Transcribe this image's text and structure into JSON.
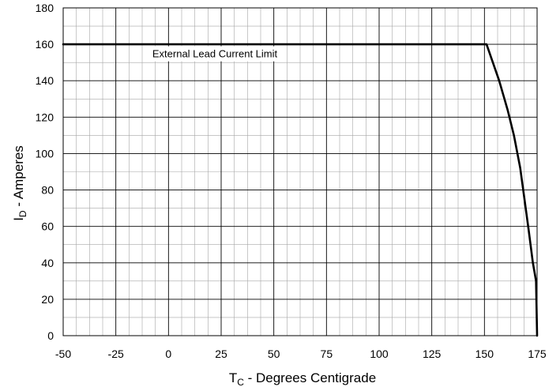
{
  "chart_data": {
    "type": "line",
    "xlabel": {
      "main": "T",
      "sub": "C",
      "rest": " - Degrees Centigrade"
    },
    "ylabel": {
      "main": "I",
      "sub": "D",
      "rest": " - Amperes"
    },
    "xlim": [
      -50,
      175
    ],
    "ylim": [
      0,
      180
    ],
    "xticks": [
      -50,
      -25,
      0,
      25,
      50,
      75,
      100,
      125,
      150,
      175
    ],
    "yticks": [
      0,
      20,
      40,
      60,
      80,
      100,
      120,
      140,
      160,
      180
    ],
    "x_minor_step": 6.25,
    "y_minor_step": 10,
    "grid": true,
    "series": [
      {
        "points": [
          [
            -50,
            160
          ],
          [
            151,
            160
          ],
          [
            157,
            140
          ],
          [
            161,
            124
          ],
          [
            164,
            110
          ],
          [
            167,
            92
          ],
          [
            169,
            75
          ],
          [
            171,
            58
          ],
          [
            173,
            40
          ],
          [
            174.5,
            30
          ],
          [
            175,
            0
          ]
        ],
        "color": "#000000"
      }
    ],
    "annotations": [
      {
        "text": "External Lead Current Limit",
        "x": 22,
        "y": 155
      }
    ]
  }
}
